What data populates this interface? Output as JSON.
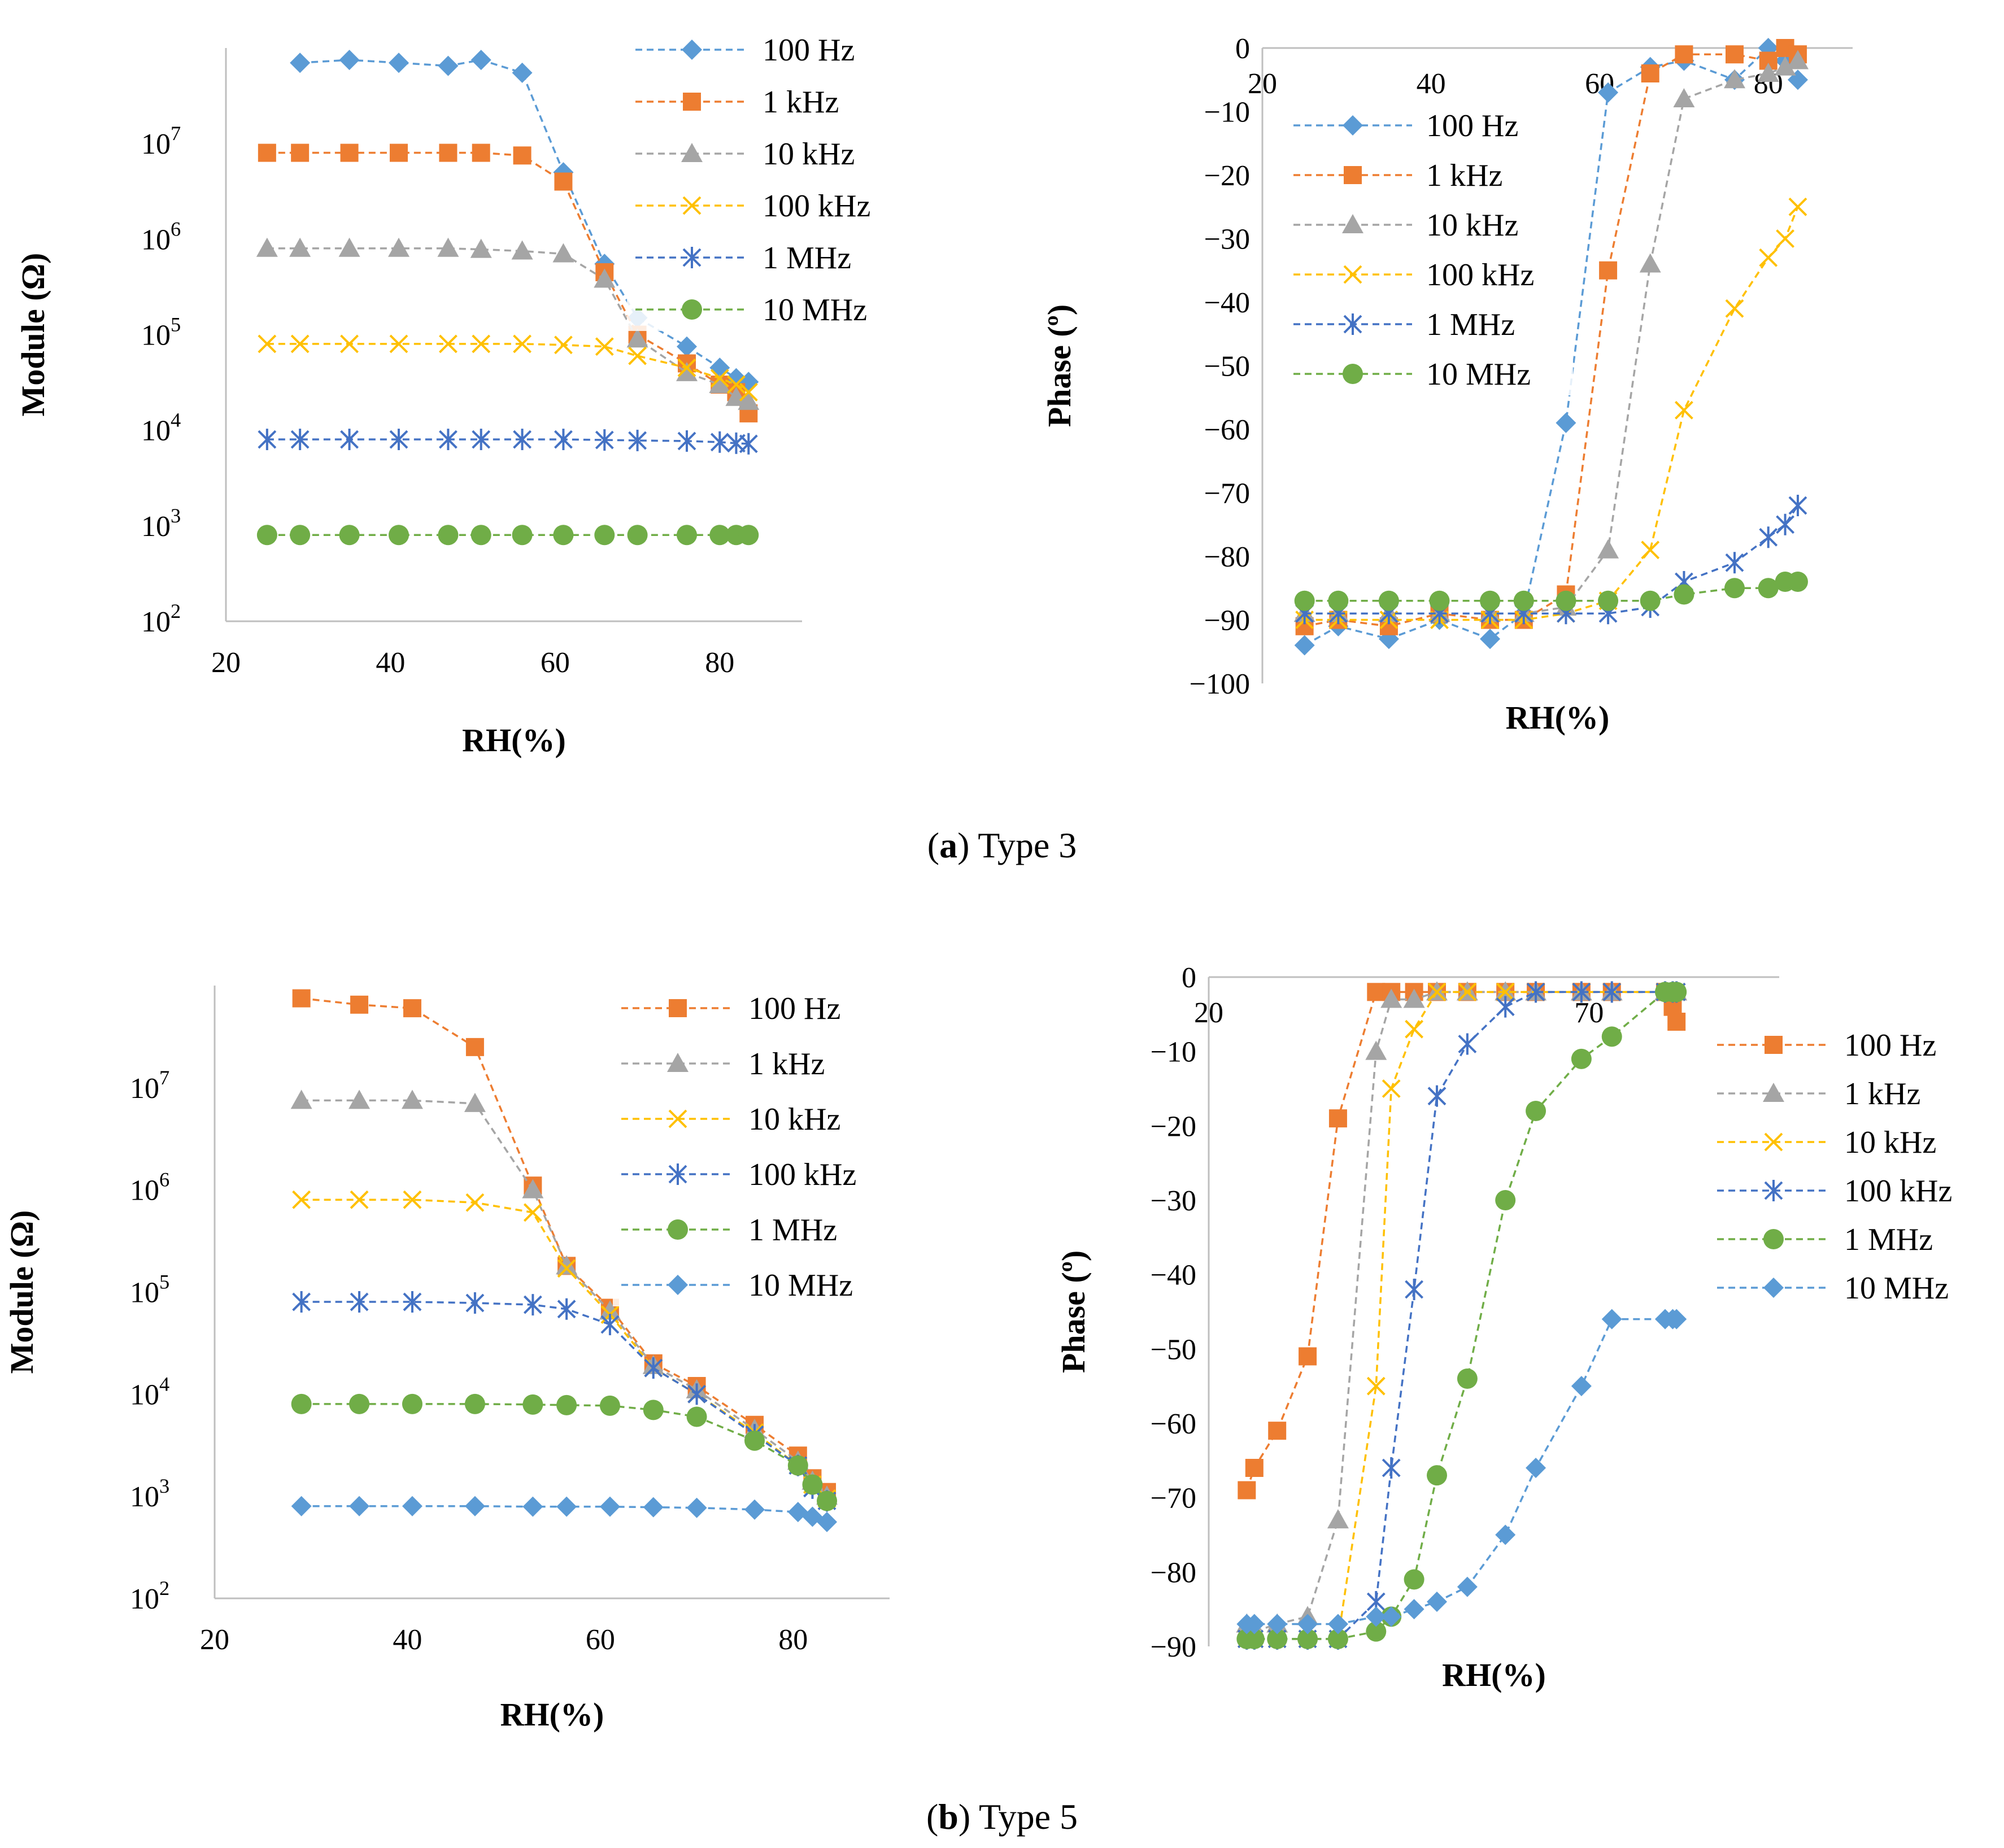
{
  "colors": {
    "blue": "#5B9BD5",
    "orange": "#ED7D31",
    "gray": "#A5A5A5",
    "yellow": "#FFC000",
    "darkblue": "#4472C4",
    "green": "#70AD47"
  },
  "captions": {
    "a": {
      "letter": "a",
      "text": "Type 3"
    },
    "b": {
      "letter": "b",
      "text": "Type 5"
    }
  },
  "chart_data": [
    {
      "id": "a-module",
      "type": "line",
      "yscale": "log",
      "xlabel": "RH(%)",
      "ylabel": "Module (Ω)",
      "xlim": [
        20,
        90
      ],
      "ylim": [
        100,
        100000000
      ],
      "xticks": [
        20,
        40,
        60,
        80
      ],
      "yticks": [
        {
          "v": 100,
          "base": "10",
          "exp": "2"
        },
        {
          "v": 1000,
          "base": "10",
          "exp": "3"
        },
        {
          "v": 10000,
          "base": "10",
          "exp": "4"
        },
        {
          "v": 100000,
          "base": "10",
          "exp": "5"
        },
        {
          "v": 1000000,
          "base": "10",
          "exp": "6"
        },
        {
          "v": 10000000,
          "base": "10",
          "exp": "7"
        }
      ],
      "legend_position": "top-right",
      "series": [
        {
          "name": "100 Hz",
          "color": "blue",
          "marker": "diamond",
          "x": [
            29,
            35,
            41,
            47,
            51,
            56,
            61,
            66,
            70,
            76,
            80,
            82,
            83.5
          ],
          "y": [
            70000000,
            75000000,
            70000000,
            65000000,
            75000000,
            55000000,
            5000000,
            550000,
            150000,
            75000,
            45000,
            35000,
            32000
          ]
        },
        {
          "name": "1 kHz",
          "color": "orange",
          "marker": "square",
          "x": [
            25,
            29,
            35,
            41,
            47,
            51,
            56,
            61,
            66,
            70,
            76,
            80,
            82,
            83.5
          ],
          "y": [
            8000000,
            8000000,
            8000000,
            8000000,
            8000000,
            8000000,
            7500000,
            4000000,
            450000,
            100000,
            50000,
            30000,
            25000,
            15000
          ]
        },
        {
          "name": "10 kHz",
          "color": "gray",
          "marker": "triangle",
          "x": [
            25,
            29,
            35,
            41,
            47,
            51,
            56,
            61,
            66,
            70,
            76,
            80,
            82,
            83.5
          ],
          "y": [
            800000,
            800000,
            800000,
            800000,
            800000,
            780000,
            750000,
            700000,
            380000,
            90000,
            40000,
            30000,
            22000,
            20000
          ]
        },
        {
          "name": "100 kHz",
          "color": "yellow",
          "marker": "x",
          "x": [
            25,
            29,
            35,
            41,
            47,
            51,
            56,
            61,
            66,
            70,
            76,
            80,
            82,
            83.5
          ],
          "y": [
            80000,
            80000,
            80000,
            80000,
            80000,
            80000,
            80000,
            78000,
            75000,
            60000,
            45000,
            35000,
            30000,
            25000
          ]
        },
        {
          "name": "1 MHz",
          "color": "darkblue",
          "marker": "asterisk",
          "x": [
            25,
            29,
            35,
            41,
            47,
            51,
            56,
            61,
            66,
            70,
            76,
            80,
            82,
            83.5
          ],
          "y": [
            8000,
            8000,
            8000,
            8000,
            8000,
            8000,
            8000,
            8000,
            7900,
            7800,
            7700,
            7500,
            7300,
            7200
          ]
        },
        {
          "name": "10 MHz",
          "color": "green",
          "marker": "circle",
          "x": [
            25,
            29,
            35,
            41,
            47,
            51,
            56,
            61,
            66,
            70,
            76,
            80,
            82,
            83.5
          ],
          "y": [
            800,
            800,
            800,
            800,
            800,
            800,
            800,
            800,
            800,
            800,
            800,
            800,
            800,
            800
          ]
        }
      ]
    },
    {
      "id": "a-phase",
      "type": "line",
      "yscale": "linear",
      "xlabel": "RH(%)",
      "ylabel": "Phase (º)",
      "xlim": [
        20,
        90
      ],
      "ylim": [
        -100,
        0
      ],
      "xticks": [
        20,
        40,
        60,
        80
      ],
      "yticks": [
        0,
        -10,
        -20,
        -30,
        -40,
        -50,
        -60,
        -70,
        -80,
        -90,
        -100
      ],
      "legend_position": "center",
      "series": [
        {
          "name": "100 Hz",
          "color": "blue",
          "marker": "diamond",
          "x": [
            25,
            29,
            35,
            41,
            47,
            51,
            56,
            61,
            66,
            70,
            76,
            80,
            82,
            83.5
          ],
          "y": [
            -94,
            -91,
            -93,
            -90,
            -93,
            -89,
            -59,
            -7,
            -3,
            -2,
            -5,
            0,
            -2,
            -5
          ]
        },
        {
          "name": "1 kHz",
          "color": "orange",
          "marker": "square",
          "x": [
            25,
            29,
            35,
            41,
            47,
            51,
            56,
            61,
            66,
            70,
            76,
            80,
            82,
            83.5
          ],
          "y": [
            -91,
            -90,
            -91,
            -89,
            -90,
            -90,
            -86,
            -35,
            -4,
            -1,
            -1,
            -2,
            0,
            -1
          ]
        },
        {
          "name": "10 kHz",
          "color": "gray",
          "marker": "triangle",
          "x": [
            25,
            29,
            35,
            41,
            47,
            51,
            56,
            61,
            66,
            70,
            76,
            80,
            82,
            83.5
          ],
          "y": [
            -89,
            -89,
            -89,
            -89,
            -89,
            -89,
            -88,
            -79,
            -34,
            -8,
            -5,
            -4,
            -3,
            -2
          ]
        },
        {
          "name": "100 kHz",
          "color": "yellow",
          "marker": "x",
          "x": [
            25,
            29,
            35,
            41,
            47,
            51,
            56,
            61,
            66,
            70,
            76,
            80,
            82,
            83.5
          ],
          "y": [
            -90,
            -90,
            -90,
            -90,
            -90,
            -90,
            -89,
            -87,
            -79,
            -57,
            -41,
            -33,
            -30,
            -25
          ]
        },
        {
          "name": "1 MHz",
          "color": "darkblue",
          "marker": "asterisk",
          "x": [
            25,
            29,
            35,
            41,
            47,
            51,
            56,
            61,
            66,
            70,
            76,
            80,
            82,
            83.5
          ],
          "y": [
            -89,
            -89,
            -89,
            -89,
            -89,
            -89,
            -89,
            -89,
            -88,
            -84,
            -81,
            -77,
            -75,
            -72
          ]
        },
        {
          "name": "10 MHz",
          "color": "green",
          "marker": "circle",
          "x": [
            25,
            29,
            35,
            41,
            47,
            51,
            56,
            61,
            66,
            70,
            76,
            80,
            82,
            83.5
          ],
          "y": [
            -87,
            -87,
            -87,
            -87,
            -87,
            -87,
            -87,
            -87,
            -87,
            -86,
            -85,
            -85,
            -84,
            -84
          ]
        }
      ]
    },
    {
      "id": "b-module",
      "type": "line",
      "yscale": "log",
      "xlabel": "RH(%)",
      "ylabel": "Module (Ω)",
      "xlim": [
        20,
        90
      ],
      "ylim": [
        100,
        100000000
      ],
      "xticks": [
        20,
        40,
        60,
        80
      ],
      "yticks": [
        {
          "v": 100,
          "base": "10",
          "exp": "2"
        },
        {
          "v": 1000,
          "base": "10",
          "exp": "3"
        },
        {
          "v": 10000,
          "base": "10",
          "exp": "4"
        },
        {
          "v": 100000,
          "base": "10",
          "exp": "5"
        },
        {
          "v": 1000000,
          "base": "10",
          "exp": "6"
        },
        {
          "v": 10000000,
          "base": "10",
          "exp": "7"
        }
      ],
      "legend_position": "top-right",
      "series": [
        {
          "name": "100 Hz",
          "color": "orange",
          "marker": "square",
          "x": [
            29,
            35,
            40.5,
            47,
            53,
            56.5,
            61,
            65.5,
            70,
            76,
            80.5,
            82,
            83.5
          ],
          "y": [
            75000000,
            65000000,
            60000000,
            25000000,
            1100000,
            180000,
            70000,
            20000,
            12000,
            5000,
            2500,
            1500,
            1100
          ]
        },
        {
          "name": "1 kHz",
          "color": "gray",
          "marker": "triangle",
          "x": [
            29,
            35,
            40.5,
            47,
            53,
            56.5,
            61,
            65.5,
            70,
            76,
            80.5,
            82,
            83.5
          ],
          "y": [
            7500000,
            7500000,
            7500000,
            7000000,
            1000000,
            180000,
            65000,
            19000,
            11000,
            4500,
            2200,
            1400,
            1000
          ]
        },
        {
          "name": "10 kHz",
          "color": "yellow",
          "marker": "x",
          "x": [
            29,
            35,
            40.5,
            47,
            53,
            56.5,
            61,
            65.5,
            70,
            76,
            80.5,
            82,
            83.5
          ],
          "y": [
            800000,
            800000,
            800000,
            750000,
            600000,
            170000,
            60000,
            18000,
            10000,
            4200,
            2000,
            1300,
            950
          ]
        },
        {
          "name": "100 kHz",
          "color": "darkblue",
          "marker": "asterisk",
          "x": [
            29,
            35,
            40.5,
            47,
            53,
            56.5,
            61,
            65.5,
            70,
            76,
            80.5,
            82,
            83.5
          ],
          "y": [
            80000,
            80000,
            80000,
            78000,
            75000,
            68000,
            48000,
            18000,
            10000,
            4000,
            2000,
            1200,
            900
          ]
        },
        {
          "name": "1 MHz",
          "color": "green",
          "marker": "circle",
          "x": [
            29,
            35,
            40.5,
            47,
            53,
            56.5,
            61,
            65.5,
            70,
            76,
            80.5,
            82,
            83.5
          ],
          "y": [
            8000,
            8000,
            8000,
            8000,
            7900,
            7800,
            7700,
            7000,
            6000,
            3500,
            2000,
            1300,
            900
          ]
        },
        {
          "name": "10 MHz",
          "color": "blue",
          "marker": "diamond",
          "x": [
            29,
            35,
            40.5,
            47,
            53,
            56.5,
            61,
            65.5,
            70,
            76,
            80.5,
            82,
            83.5
          ],
          "y": [
            800,
            800,
            800,
            800,
            790,
            790,
            790,
            780,
            770,
            740,
            700,
            630,
            560
          ]
        }
      ]
    },
    {
      "id": "b-phase",
      "type": "line",
      "yscale": "linear",
      "xlabel": "RH(%)",
      "ylabel": "Phase (º)",
      "xlim": [
        20,
        95
      ],
      "ylim": [
        -90,
        0
      ],
      "xticks": [
        20,
        70
      ],
      "yticks": [
        0,
        -10,
        -20,
        -30,
        -40,
        -50,
        -60,
        -70,
        -80,
        -90
      ],
      "legend_position": "right",
      "series": [
        {
          "name": "100 Hz",
          "color": "orange",
          "marker": "square",
          "x": [
            25,
            26,
            29,
            33,
            37,
            42,
            44,
            47,
            50,
            54,
            59,
            63,
            69,
            73,
            80,
            81,
            81.5
          ],
          "y": [
            -69,
            -66,
            -61,
            -51,
            -19,
            -2,
            -2,
            -2,
            -2,
            -2,
            -2,
            -2,
            -2,
            -2,
            -2,
            -4,
            -6
          ]
        },
        {
          "name": "1 kHz",
          "color": "gray",
          "marker": "triangle",
          "x": [
            25,
            26,
            29,
            33,
            37,
            42,
            44,
            47,
            50,
            54,
            59,
            63,
            69,
            73,
            80,
            81,
            81.5
          ],
          "y": [
            -87,
            -88,
            -87,
            -86,
            -73,
            -10,
            -3,
            -3,
            -2,
            -2,
            -2,
            -2,
            -2,
            -2,
            -2,
            -2,
            -2
          ]
        },
        {
          "name": "10 kHz",
          "color": "yellow",
          "marker": "x",
          "x": [
            25,
            26,
            29,
            33,
            37,
            42,
            44,
            47,
            50,
            54,
            59,
            63,
            69,
            73,
            80,
            81,
            81.5
          ],
          "y": [
            -89,
            -89,
            -89,
            -89,
            -89,
            -55,
            -15,
            -7,
            -2,
            -2,
            -2,
            -2,
            -2,
            -2,
            -2,
            -2,
            -2
          ]
        },
        {
          "name": "100 kHz",
          "color": "darkblue",
          "marker": "asterisk",
          "x": [
            25,
            26,
            29,
            33,
            37,
            42,
            44,
            47,
            50,
            54,
            59,
            63,
            69,
            73,
            80,
            81,
            81.5
          ],
          "y": [
            -89,
            -89,
            -89,
            -89,
            -89,
            -84,
            -66,
            -42,
            -16,
            -9,
            -4,
            -2,
            -2,
            -2,
            -2,
            -2,
            -2
          ]
        },
        {
          "name": "1 MHz",
          "color": "green",
          "marker": "circle",
          "x": [
            25,
            26,
            29,
            33,
            37,
            42,
            44,
            47,
            50,
            54,
            59,
            63,
            69,
            73,
            80,
            81,
            81.5
          ],
          "y": [
            -89,
            -89,
            -89,
            -89,
            -89,
            -88,
            -86,
            -81,
            -67,
            -54,
            -30,
            -18,
            -11,
            -8,
            -2,
            -2,
            -2
          ]
        },
        {
          "name": "10 MHz",
          "color": "blue",
          "marker": "diamond",
          "x": [
            25,
            26,
            29,
            33,
            37,
            42,
            44,
            47,
            50,
            54,
            59,
            63,
            69,
            73,
            80,
            81,
            81.5
          ],
          "y": [
            -87,
            -87,
            -87,
            -87,
            -87,
            -86,
            -86,
            -85,
            -84,
            -82,
            -75,
            -66,
            -55,
            -46,
            -46,
            -46,
            -46
          ]
        }
      ]
    }
  ]
}
